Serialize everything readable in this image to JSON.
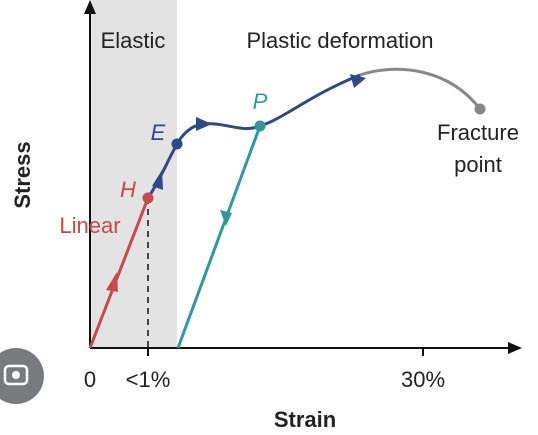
{
  "regions": {
    "elastic": "Elastic",
    "plastic": "Plastic deformation"
  },
  "axes": {
    "y_label": "Stress",
    "x_label": "Strain",
    "x_ticks": [
      "0",
      "<1%",
      "30%"
    ]
  },
  "points": {
    "linear": "Linear",
    "h": "H",
    "e": "E",
    "p": "P",
    "fracture": [
      "Fracture",
      "point"
    ]
  }
}
